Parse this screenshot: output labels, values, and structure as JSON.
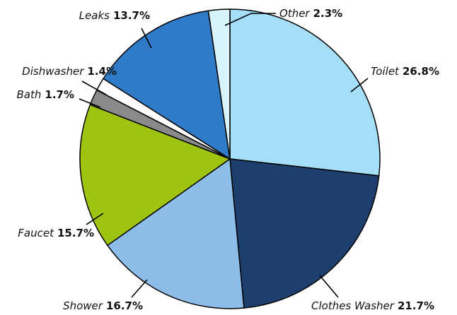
{
  "chart_data": {
    "type": "pie",
    "categories": [
      "Toilet",
      "Clothes Washer",
      "Shower",
      "Faucet",
      "Bath",
      "Dishwasher",
      "Leaks",
      "Other"
    ],
    "values": [
      26.8,
      21.7,
      16.7,
      15.7,
      1.7,
      1.4,
      13.7,
      2.3
    ],
    "value_labels": [
      "26.8%",
      "21.7%",
      "16.7%",
      "15.7%",
      "1.7%",
      "1.4%",
      "13.7%",
      "2.3%"
    ],
    "colors": [
      "#a4def7",
      "#1d3f6d",
      "#8dbde9",
      "#9ec310",
      "#8a8a8a",
      "#ffffff",
      "#2f7bc8",
      "#d7f3fb"
    ]
  }
}
